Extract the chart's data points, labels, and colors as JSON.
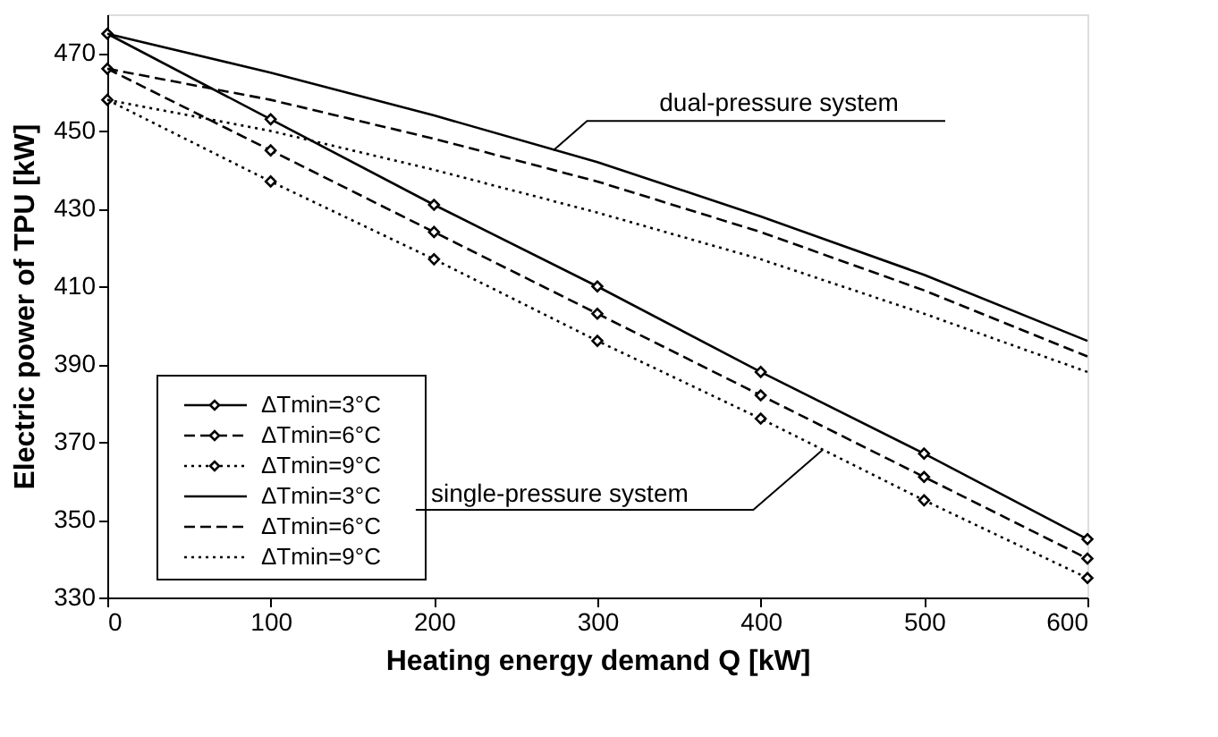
{
  "chart_data": {
    "type": "line",
    "xlabel": "Heating energy demand Q [kW]",
    "ylabel": "Electric power of TPU [kW]",
    "x": [
      0,
      100,
      200,
      300,
      400,
      500,
      600
    ],
    "xlim": [
      0,
      600
    ],
    "xticks": [
      0,
      100,
      200,
      300,
      400,
      500,
      600
    ],
    "ylim": [
      330,
      480
    ],
    "yticks": [
      330,
      350,
      370,
      390,
      410,
      430,
      450,
      470
    ],
    "grid": false,
    "legend": "bottom left",
    "series": [
      {
        "name": "ΔTmin=3°C",
        "color": "#000000",
        "marker": "diamond",
        "line_style": "solid",
        "values": [
          475,
          453,
          431,
          410,
          388,
          367,
          345
        ]
      },
      {
        "name": "ΔTmin=6°C",
        "color": "#000000",
        "marker": "diamond",
        "line_style": "dashed",
        "values": [
          466,
          445,
          424,
          403,
          382,
          361,
          340
        ]
      },
      {
        "name": "ΔTmin=9°C",
        "color": "#000000",
        "marker": "diamond",
        "line_style": "dotted",
        "values": [
          458,
          437,
          417,
          396,
          376,
          355,
          335
        ]
      },
      {
        "name": "ΔTmin=3°C",
        "color": "#000000",
        "marker": "none",
        "line_style": "solid",
        "values": [
          475,
          465,
          454,
          442,
          428,
          413,
          396
        ]
      },
      {
        "name": "ΔTmin=6°C",
        "color": "#000000",
        "marker": "none",
        "line_style": "dashed",
        "values": [
          466,
          458,
          448,
          437,
          424,
          409,
          392
        ]
      },
      {
        "name": "ΔTmin=9°C",
        "color": "#000000",
        "marker": "none",
        "line_style": "dotted",
        "values": [
          458,
          450,
          440,
          429,
          417,
          403,
          388
        ]
      }
    ],
    "annotations": [
      {
        "text": "dual-pressure system",
        "x": 273,
        "y": 445
      },
      {
        "text": "single-pressure system",
        "x": 438,
        "y": 368
      }
    ]
  }
}
